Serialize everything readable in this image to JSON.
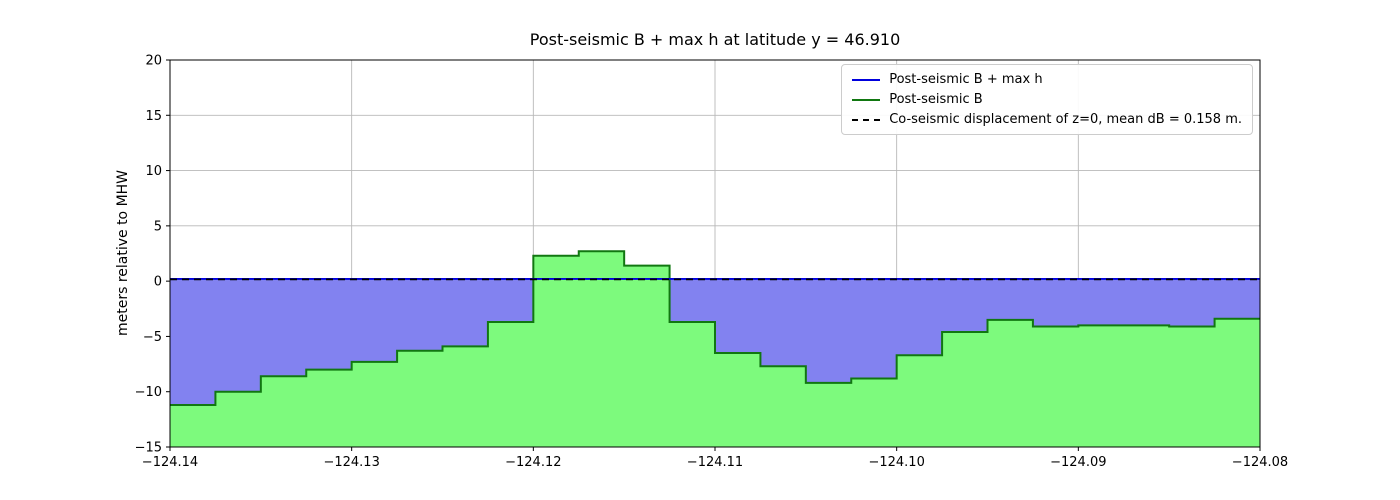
{
  "chart_data": {
    "type": "area",
    "title": "Post-seismic B + max h at latitude y = 46.910",
    "ylabel": "meters relative to MHW",
    "xlabel": "",
    "xlim": [
      -124.14,
      -124.08
    ],
    "ylim": [
      -15,
      20
    ],
    "grid": true,
    "legend_position": "upper right",
    "xticks": {
      "values": [
        -124.14,
        -124.13,
        -124.12,
        -124.11,
        -124.1,
        -124.09,
        -124.08
      ],
      "labels": [
        "−124.14",
        "−124.13",
        "−124.12",
        "−124.11",
        "−124.10",
        "−124.09",
        "−124.08"
      ]
    },
    "yticks": {
      "values": [
        -15,
        -10,
        -5,
        0,
        5,
        10,
        15,
        20
      ],
      "labels": [
        "−15",
        "−10",
        "−5",
        "0",
        "5",
        "10",
        "15",
        "20"
      ]
    },
    "series": [
      {
        "name": "Post-seismic B + max h",
        "type": "hline",
        "value": 0.2,
        "line_color": "#0000dd",
        "fill_color": "#8282f0",
        "line_style": "solid"
      },
      {
        "name": "Post-seismic B",
        "type": "step",
        "x_start": -124.14,
        "dx": 0.0025,
        "values": [
          -11.2,
          -10.0,
          -8.6,
          -8.0,
          -7.3,
          -6.3,
          -5.9,
          -3.7,
          2.3,
          2.7,
          1.4,
          -3.7,
          -6.5,
          -7.7,
          -9.2,
          -8.8,
          -6.7,
          -4.6,
          -3.5,
          -4.1,
          -4.0,
          -4.0,
          -4.1,
          -3.4
        ],
        "line_color": "#117711",
        "fill_color": "#7dfa7d",
        "line_style": "solid"
      },
      {
        "name": "Co-seismic displacement of z=0, mean dB = 0.158 m.",
        "type": "hline",
        "value": 0.158,
        "line_color": "#000000",
        "line_style": "dashed"
      }
    ]
  }
}
